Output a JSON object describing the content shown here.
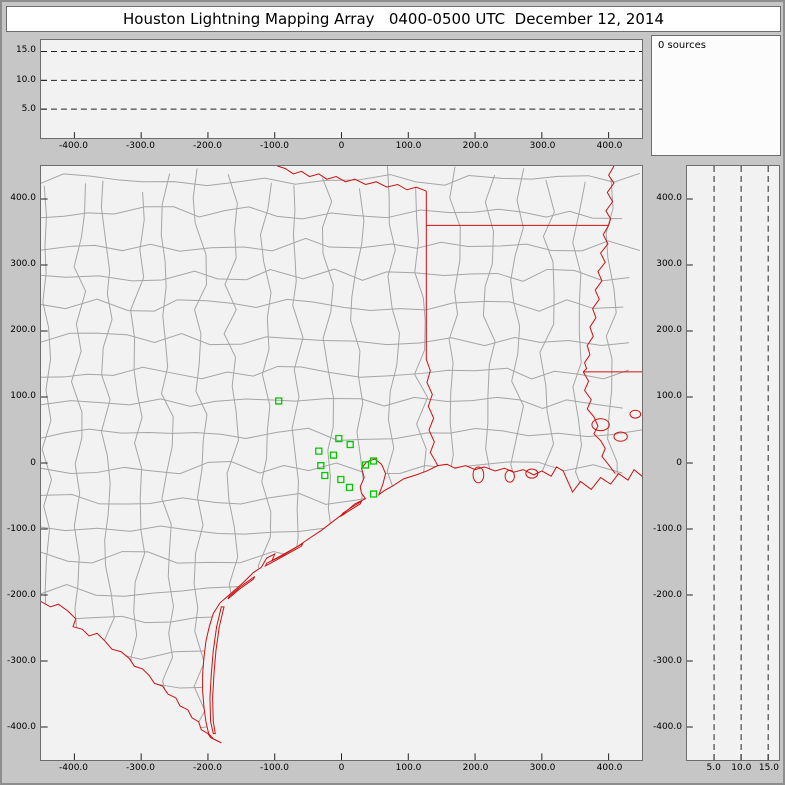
{
  "title": "Houston Lightning Mapping Array   0400-0500 UTC  December 12, 2014",
  "sources_panel": {
    "label": "0 sources"
  },
  "colors": {
    "chrome_bg": "#c6c6c6",
    "frame_border": "#8e8e8e",
    "panel_border": "#6d6d6d",
    "plot_bg": "#f2f2f2",
    "title_bg": "#ffffff",
    "sources_bg": "#fcfcfc",
    "county_line": "#a5a5a5",
    "state_line": "#cc1111",
    "station": "#00c800",
    "grid_line": "#222222",
    "text": "#000000"
  },
  "chart_data": [
    {
      "id": "altitude_vs_east_west",
      "type": "scatter",
      "title": "",
      "x_ticks": [
        -400,
        -300,
        -200,
        -100,
        0,
        100,
        200,
        300,
        400
      ],
      "x_tick_labels": [
        "-400.0",
        "-300.0",
        "-200.0",
        "-100.0",
        "0",
        "100.0",
        "200.0",
        "300.0",
        "400.0"
      ],
      "xlim": [
        -450,
        450
      ],
      "y_gridlines": [
        5,
        10,
        15
      ],
      "y_tick_labels": [
        "5.0",
        "10.0",
        "15.0"
      ],
      "ylim": [
        0,
        17
      ],
      "grid": "dashed-horizontal",
      "source_points": []
    },
    {
      "id": "plan_view",
      "type": "scatter",
      "title": "",
      "x_ticks": [
        -400,
        -300,
        -200,
        -100,
        0,
        100,
        200,
        300,
        400
      ],
      "x_tick_labels": [
        "-400.0",
        "-300.0",
        "-200.0",
        "-100.0",
        "0",
        "100.0",
        "200.0",
        "300.0",
        "400.0"
      ],
      "xlim": [
        -450,
        450
      ],
      "y_ticks": [
        400,
        300,
        200,
        100,
        0,
        -100,
        -200,
        -300,
        -400
      ],
      "y_tick_labels": [
        "400.0",
        "300.0",
        "200.0",
        "100.0",
        "0",
        "-100.0",
        "-200.0",
        "-300.0",
        "-400.0"
      ],
      "ylim": [
        -450,
        450
      ],
      "grid": "off",
      "map_features": [
        "county-boundaries-gray",
        "state-borders-red",
        "gulf-coastline-red",
        "rio-grande-red",
        "barrier-islands-red"
      ],
      "stations_km": [
        [
          -94,
          94
        ],
        [
          -4,
          37
        ],
        [
          13,
          28
        ],
        [
          -34,
          18
        ],
        [
          -12,
          12
        ],
        [
          48,
          3
        ],
        [
          36,
          -3
        ],
        [
          -31,
          -4
        ],
        [
          -25,
          -19
        ],
        [
          -1,
          -25
        ],
        [
          12,
          -37
        ],
        [
          48,
          -47
        ]
      ],
      "lightning_points": []
    },
    {
      "id": "altitude_vs_north_south",
      "type": "scatter",
      "title": "",
      "x_gridlines": [
        5,
        10,
        15
      ],
      "x_tick_labels": [
        "5.0",
        "10.0",
        "15.0"
      ],
      "xlim": [
        0,
        17
      ],
      "y_ticks": [
        400,
        300,
        200,
        100,
        0,
        -100,
        -200,
        -300,
        -400
      ],
      "y_tick_labels": [
        "400.0",
        "300.0",
        "200.0",
        "100.0",
        "0",
        "-100.0",
        "-200.0",
        "-300.0",
        "-400.0"
      ],
      "ylim": [
        -450,
        450
      ],
      "grid": "dashed-vertical",
      "source_points": []
    }
  ]
}
